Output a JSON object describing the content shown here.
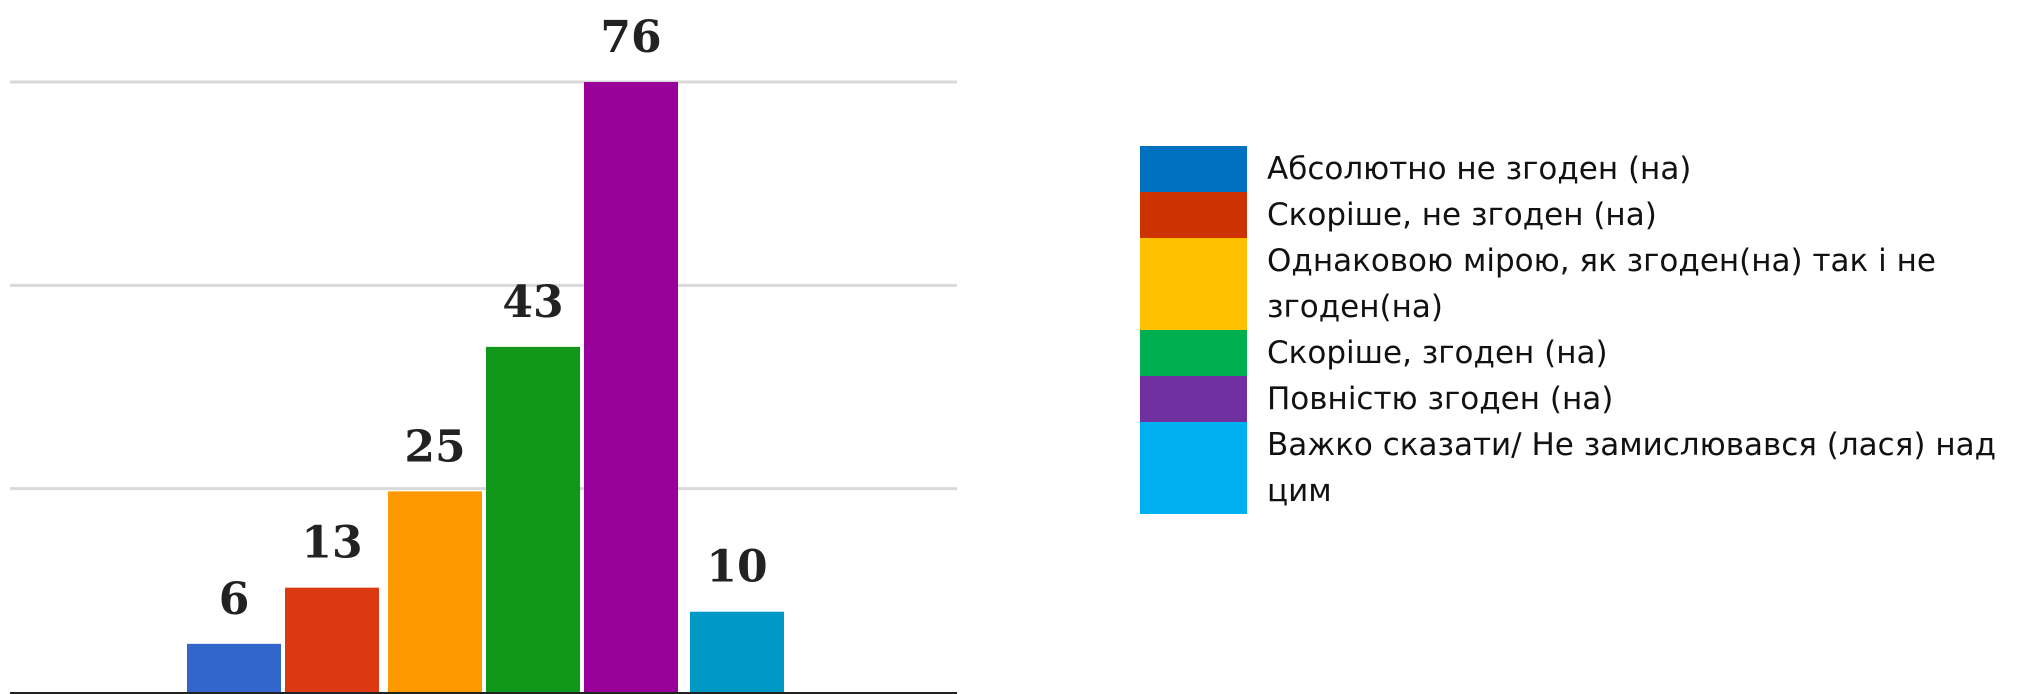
{
  "chart_data": {
    "type": "bar",
    "categories": [
      "Абсолютно не згоден (на)",
      "Скоріше, не згоден (на)",
      "Однаковою мірою, як згоден(на) так і не згоден(на)",
      "Скоріше, згоден (на)",
      "Повністю згоден (на)",
      "Важко сказати/ Не замислювався (лася) над цим"
    ],
    "values": [
      6,
      13,
      25,
      43,
      76,
      10
    ],
    "bar_colors": [
      "#3366cc",
      "#dc3912",
      "#ff9900",
      "#109618",
      "#990099",
      "#0099c6"
    ],
    "legend_colors": [
      "#0070c0",
      "#cc3300",
      "#ffc000",
      "#00b050",
      "#7030a0",
      "#00b0f0"
    ],
    "ylim": [
      0,
      76
    ],
    "grid": true,
    "legend_position": "right",
    "xlabel": "",
    "ylabel": "",
    "title": ""
  }
}
